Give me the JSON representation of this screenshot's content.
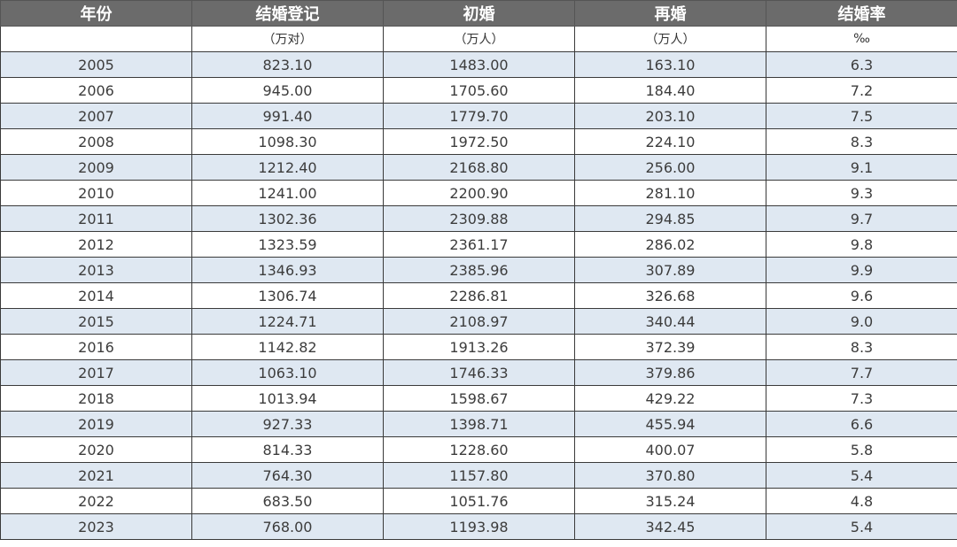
{
  "table": {
    "headers": [
      "年份",
      "结婚登记",
      "初婚",
      "再婚",
      "结婚率"
    ],
    "units": [
      "",
      "（万对）",
      "（万人）",
      "（万人）",
      "‰"
    ],
    "rows": [
      [
        "2005",
        "823.10",
        "1483.00",
        "163.10",
        "6.3"
      ],
      [
        "2006",
        "945.00",
        "1705.60",
        "184.40",
        "7.2"
      ],
      [
        "2007",
        "991.40",
        "1779.70",
        "203.10",
        "7.5"
      ],
      [
        "2008",
        "1098.30",
        "1972.50",
        "224.10",
        "8.3"
      ],
      [
        "2009",
        "1212.40",
        "2168.80",
        "256.00",
        "9.1"
      ],
      [
        "2010",
        "1241.00",
        "2200.90",
        "281.10",
        "9.3"
      ],
      [
        "2011",
        "1302.36",
        "2309.88",
        "294.85",
        "9.7"
      ],
      [
        "2012",
        "1323.59",
        "2361.17",
        "286.02",
        "9.8"
      ],
      [
        "2013",
        "1346.93",
        "2385.96",
        "307.89",
        "9.9"
      ],
      [
        "2014",
        "1306.74",
        "2286.81",
        "326.68",
        "9.6"
      ],
      [
        "2015",
        "1224.71",
        "2108.97",
        "340.44",
        "9.0"
      ],
      [
        "2016",
        "1142.82",
        "1913.26",
        "372.39",
        "8.3"
      ],
      [
        "2017",
        "1063.10",
        "1746.33",
        "379.86",
        "7.7"
      ],
      [
        "2018",
        "1013.94",
        "1598.67",
        "429.22",
        "7.3"
      ],
      [
        "2019",
        "927.33",
        "1398.71",
        "455.94",
        "6.6"
      ],
      [
        "2020",
        "814.33",
        "1228.60",
        "400.07",
        "5.8"
      ],
      [
        "2021",
        "764.30",
        "1157.80",
        "370.80",
        "5.4"
      ],
      [
        "2022",
        "683.50",
        "1051.76",
        "315.24",
        "4.8"
      ],
      [
        "2023",
        "768.00",
        "1193.98",
        "342.45",
        "5.4"
      ]
    ]
  },
  "colors": {
    "header_bg": "#6b6b6b",
    "header_text": "#ffffff",
    "shaded_row": "#dfe8f2",
    "plain_row": "#ffffff",
    "grid": "#3a3a3a"
  }
}
